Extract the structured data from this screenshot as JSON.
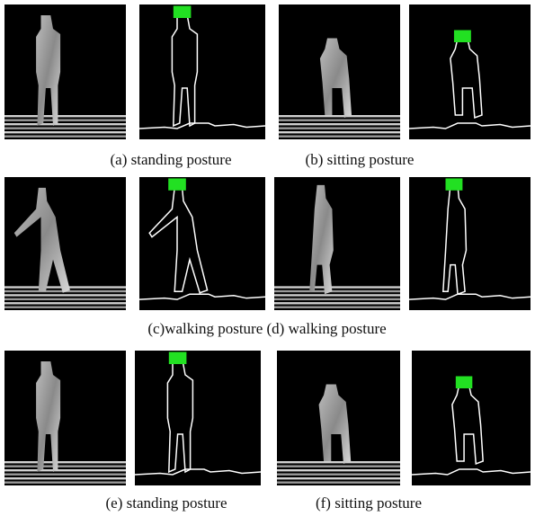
{
  "figure": {
    "captions": [
      "(a) standing posture",
      "(b) sitting posture",
      "(c)walking posture (d) walking posture",
      "(e) standing posture",
      "(f) sitting posture"
    ]
  }
}
